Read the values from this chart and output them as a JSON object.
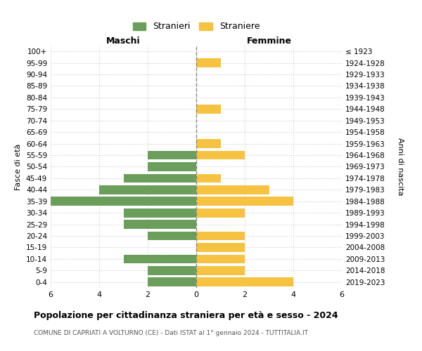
{
  "age_groups": [
    "100+",
    "95-99",
    "90-94",
    "85-89",
    "80-84",
    "75-79",
    "70-74",
    "65-69",
    "60-64",
    "55-59",
    "50-54",
    "45-49",
    "40-44",
    "35-39",
    "30-34",
    "25-29",
    "20-24",
    "15-19",
    "10-14",
    "5-9",
    "0-4"
  ],
  "birth_years": [
    "≤ 1923",
    "1924-1928",
    "1929-1933",
    "1934-1938",
    "1939-1943",
    "1944-1948",
    "1949-1953",
    "1954-1958",
    "1959-1963",
    "1964-1968",
    "1969-1973",
    "1974-1978",
    "1979-1983",
    "1984-1988",
    "1989-1993",
    "1994-1998",
    "1999-2003",
    "2004-2008",
    "2009-2013",
    "2014-2018",
    "2019-2023"
  ],
  "maschi": [
    0,
    0,
    0,
    0,
    0,
    0,
    0,
    0,
    0,
    2,
    2,
    3,
    4,
    6,
    3,
    3,
    2,
    0,
    3,
    2,
    2
  ],
  "femmine": [
    0,
    1,
    0,
    0,
    0,
    1,
    0,
    0,
    1,
    2,
    0,
    1,
    3,
    4,
    2,
    0,
    2,
    2,
    2,
    2,
    4
  ],
  "maschi_color": "#6a9e5a",
  "femmine_color": "#f5c242",
  "title": "Popolazione per cittadinanza straniera per età e sesso - 2024",
  "subtitle": "COMUNE DI CAPRIATI A VOLTURNO (CE) - Dati ISTAT al 1° gennaio 2024 - TUTTITALIA.IT",
  "legend_maschi": "Stranieri",
  "legend_femmine": "Straniere",
  "header_left": "Maschi",
  "header_right": "Femmine",
  "ylabel_left": "Fasce di età",
  "ylabel_right": "Anni di nascita",
  "xlim": 6,
  "background_color": "#ffffff",
  "grid_color": "#cccccc"
}
